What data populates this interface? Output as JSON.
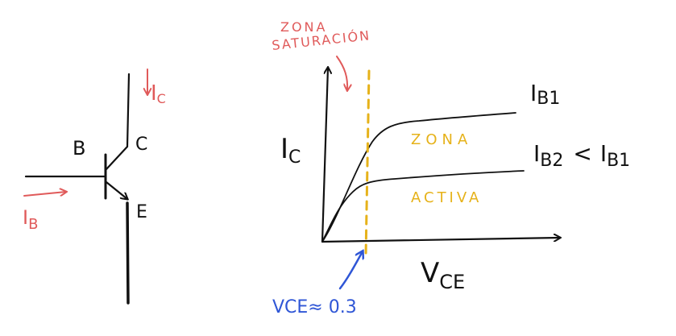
{
  "colors": {
    "ink": "#111111",
    "red": "#e05a5a",
    "yellow": "#e6b21a",
    "blue": "#2f56d6"
  },
  "transistor": {
    "label_b": "B",
    "label_c": "C",
    "label_e": "E",
    "label_ic_main": "I",
    "label_ic_sub": "C",
    "label_ib_main": "I",
    "label_ib_sub": "B"
  },
  "graph": {
    "y_axis_main": "I",
    "y_axis_sub": "C",
    "x_axis_main": "V",
    "x_axis_sub": "CE",
    "curve1_main": "I",
    "curve1_sub": "B1",
    "curve2_main": "I",
    "curve2_sub": "B2",
    "curve2_compare": "<",
    "curve2_ref_main": "I",
    "curve2_ref_sub": "B1",
    "zona_sat_line1": "ZONA",
    "zona_sat_line2": "SATURACIÓN",
    "zona_activa_line1": "ZONA",
    "zona_activa_line2": "ACTIVA",
    "vce_annotation": "VCE≈ 0.3"
  }
}
